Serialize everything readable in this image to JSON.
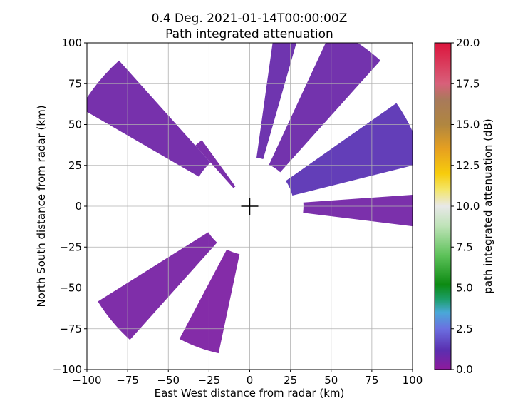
{
  "chart_data": {
    "type": "heatmap",
    "title": "0.4 Deg. 2021-01-14T00:00:00Z",
    "subtitle": "Path integrated attenuation",
    "xlabel": "East West distance from radar (km)",
    "ylabel": "North South distance from radar (km)",
    "xlim": [
      -100,
      100
    ],
    "ylim": [
      -100,
      100
    ],
    "xticks": [
      "−100",
      "−75",
      "−50",
      "−25",
      "0",
      "25",
      "50",
      "75",
      "100"
    ],
    "yticks": [
      "100",
      "75",
      "50",
      "25",
      "0",
      "−25",
      "−50",
      "−75",
      "−100"
    ],
    "xtick_values": [
      -100,
      -75,
      -50,
      -25,
      0,
      25,
      50,
      75,
      100
    ],
    "ytick_values": [
      100,
      75,
      50,
      25,
      0,
      -25,
      -50,
      -75,
      -100
    ],
    "grid": true,
    "radar_marker": {
      "x": 0,
      "y": 0,
      "symbol": "+"
    },
    "colorbar": {
      "label": "path integrated attenuation (dB)",
      "min": 0.0,
      "max": 20.0,
      "ticks": [
        "0.0",
        "2.5",
        "5.0",
        "7.5",
        "10.0",
        "12.5",
        "15.0",
        "17.5",
        "20.0"
      ],
      "tick_values": [
        0,
        2.5,
        5,
        7.5,
        10,
        12.5,
        15,
        17.5,
        20
      ],
      "stops": [
        {
          "v": 0.0,
          "color": "#8e1a9c"
        },
        {
          "v": 1.2,
          "color": "#5a2fb0"
        },
        {
          "v": 2.5,
          "color": "#6b6fe0"
        },
        {
          "v": 3.5,
          "color": "#4aa8d8"
        },
        {
          "v": 4.3,
          "color": "#1c9e6a"
        },
        {
          "v": 5.2,
          "color": "#0c8a12"
        },
        {
          "v": 7.0,
          "color": "#5ec25a"
        },
        {
          "v": 8.8,
          "color": "#bfe3b8"
        },
        {
          "v": 10.0,
          "color": "#e8e8e8"
        },
        {
          "v": 11.0,
          "color": "#f4e66a"
        },
        {
          "v": 12.0,
          "color": "#f7cc0c"
        },
        {
          "v": 13.5,
          "color": "#e6a020"
        },
        {
          "v": 15.0,
          "color": "#b08640"
        },
        {
          "v": 16.5,
          "color": "#a87a5a"
        },
        {
          "v": 17.5,
          "color": "#d8607a"
        },
        {
          "v": 20.0,
          "color": "#dc143c"
        }
      ]
    },
    "sectors": [
      {
        "az_start": 8,
        "az_end": 16,
        "r_min": 30,
        "r_max": 105,
        "value": 0.9
      },
      {
        "az_start": 25,
        "az_end": 42,
        "r_min": 28,
        "r_max": 120,
        "value": 0.8
      },
      {
        "az_start": 55,
        "az_end": 76,
        "r_min": 27,
        "r_max": 110,
        "value": 1.3
      },
      {
        "az_start": 86,
        "az_end": 97,
        "r_min": 33,
        "r_max": 102,
        "value": 0.6
      },
      {
        "az_start": 192,
        "az_end": 208,
        "r_min": 30,
        "r_max": 92,
        "value": 0.4
      },
      {
        "az_start": 222,
        "az_end": 238,
        "r_min": 30,
        "r_max": 110,
        "value": 0.5
      },
      {
        "az_start": 300,
        "az_end": 318,
        "r_min": 36,
        "r_max": 120,
        "value": 0.7
      },
      {
        "az_start": 318,
        "az_end": 324,
        "r_min": 15,
        "r_max": 50,
        "value": 0.6
      }
    ]
  }
}
